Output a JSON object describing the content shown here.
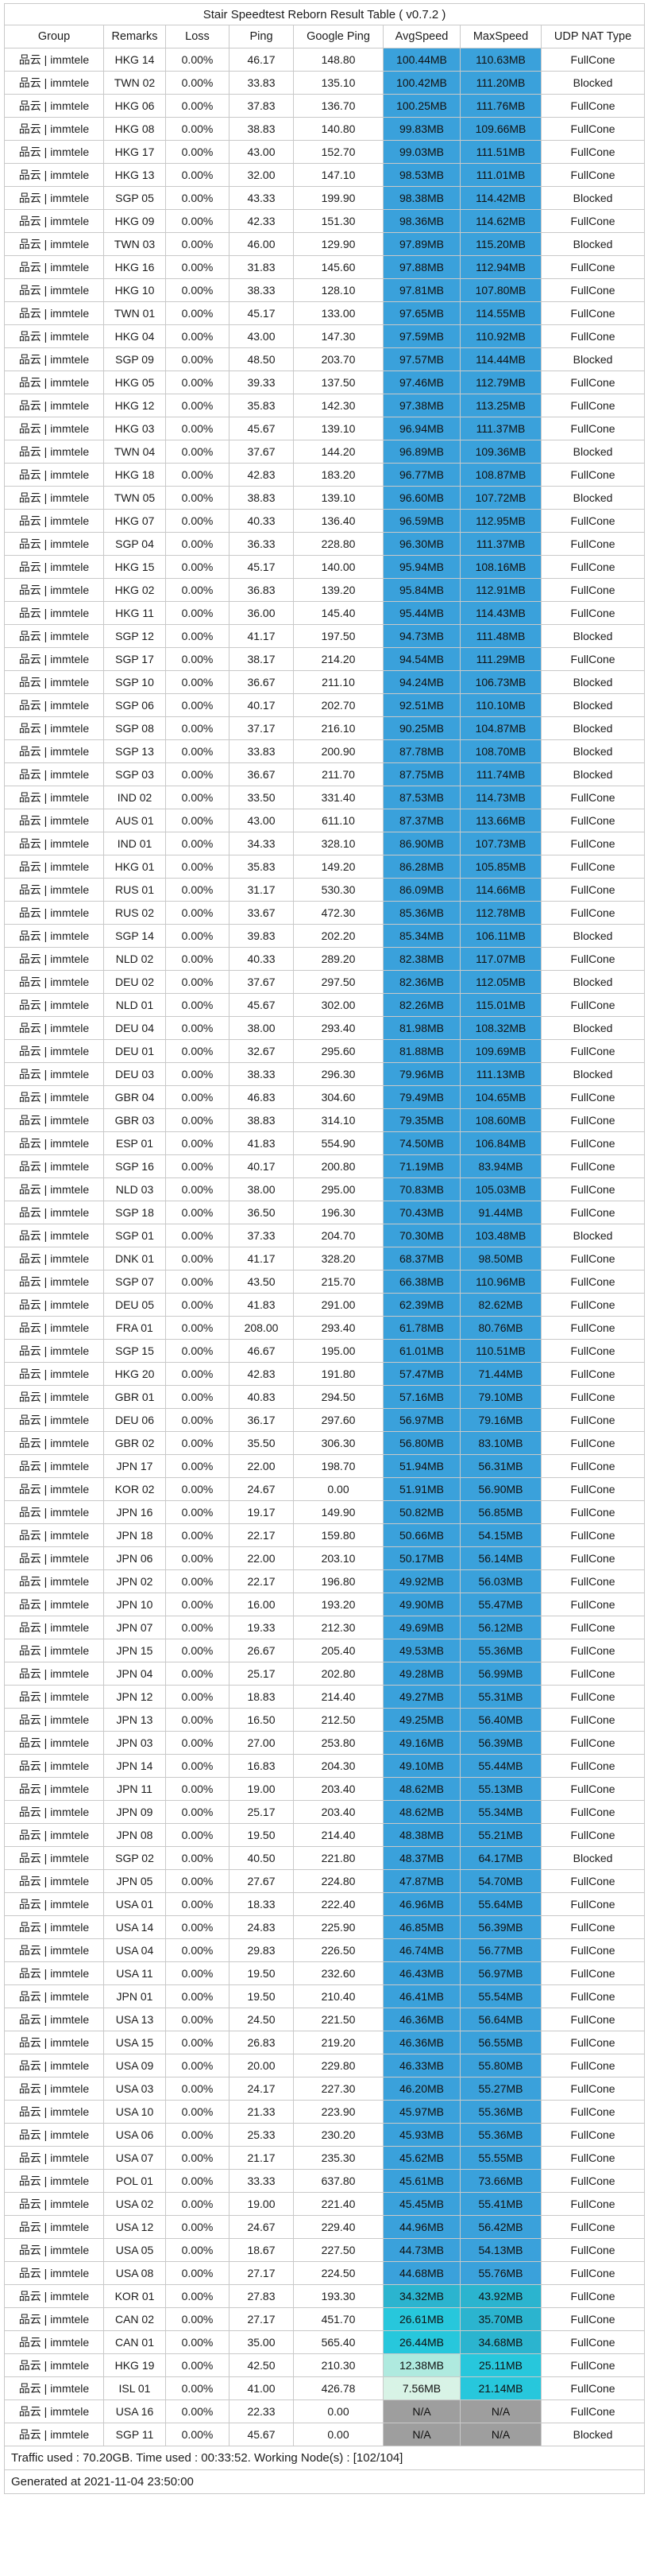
{
  "title": "Stair Speedtest Reborn Result Table ( v0.7.2 )",
  "group_label": "品云 | immtele",
  "columns": [
    "Group",
    "Remarks",
    "Loss",
    "Ping",
    "Google Ping",
    "AvgSpeed",
    "MaxSpeed",
    "UDP NAT Type"
  ],
  "colors": {
    "speed_high_blue": "#3AA1DB",
    "speed_teal": "#2BB4CF",
    "speed_cyan": "#27C7DC",
    "speed_pale_aqua": "#AFEADF",
    "speed_pale_mint": "#D8F3E6",
    "na_gray": "#9E9E9E",
    "grid": "#C9C9C9",
    "scale": [
      {
        "min": 44,
        "color": "#3AA1DB"
      },
      {
        "min": 30,
        "color": "#2BB4CF"
      },
      {
        "min": 20,
        "color": "#27C7DC"
      },
      {
        "min": 10,
        "color": "#AFEADF"
      },
      {
        "min": 0,
        "color": "#D8F3E6"
      }
    ]
  },
  "rows": [
    [
      "HKG 14",
      "0.00%",
      "46.17",
      "148.80",
      "100.44MB",
      "110.63MB",
      "FullCone"
    ],
    [
      "TWN 02",
      "0.00%",
      "33.83",
      "135.10",
      "100.42MB",
      "111.20MB",
      "Blocked"
    ],
    [
      "HKG 06",
      "0.00%",
      "37.83",
      "136.70",
      "100.25MB",
      "111.76MB",
      "FullCone"
    ],
    [
      "HKG 08",
      "0.00%",
      "38.83",
      "140.80",
      "99.83MB",
      "109.66MB",
      "FullCone"
    ],
    [
      "HKG 17",
      "0.00%",
      "43.00",
      "152.70",
      "99.03MB",
      "111.51MB",
      "FullCone"
    ],
    [
      "HKG 13",
      "0.00%",
      "32.00",
      "147.10",
      "98.53MB",
      "111.01MB",
      "FullCone"
    ],
    [
      "SGP 05",
      "0.00%",
      "43.33",
      "199.90",
      "98.38MB",
      "114.42MB",
      "Blocked"
    ],
    [
      "HKG 09",
      "0.00%",
      "42.33",
      "151.30",
      "98.36MB",
      "114.62MB",
      "FullCone"
    ],
    [
      "TWN 03",
      "0.00%",
      "46.00",
      "129.90",
      "97.89MB",
      "115.20MB",
      "Blocked"
    ],
    [
      "HKG 16",
      "0.00%",
      "31.83",
      "145.60",
      "97.88MB",
      "112.94MB",
      "FullCone"
    ],
    [
      "HKG 10",
      "0.00%",
      "38.33",
      "128.10",
      "97.81MB",
      "107.80MB",
      "FullCone"
    ],
    [
      "TWN 01",
      "0.00%",
      "45.17",
      "133.00",
      "97.65MB",
      "114.55MB",
      "FullCone"
    ],
    [
      "HKG 04",
      "0.00%",
      "43.00",
      "147.30",
      "97.59MB",
      "110.92MB",
      "FullCone"
    ],
    [
      "SGP 09",
      "0.00%",
      "48.50",
      "203.70",
      "97.57MB",
      "114.44MB",
      "Blocked"
    ],
    [
      "HKG 05",
      "0.00%",
      "39.33",
      "137.50",
      "97.46MB",
      "112.79MB",
      "FullCone"
    ],
    [
      "HKG 12",
      "0.00%",
      "35.83",
      "142.30",
      "97.38MB",
      "113.25MB",
      "FullCone"
    ],
    [
      "HKG 03",
      "0.00%",
      "45.67",
      "139.10",
      "96.94MB",
      "111.37MB",
      "FullCone"
    ],
    [
      "TWN 04",
      "0.00%",
      "37.67",
      "144.20",
      "96.89MB",
      "109.36MB",
      "Blocked"
    ],
    [
      "HKG 18",
      "0.00%",
      "42.83",
      "183.20",
      "96.77MB",
      "108.87MB",
      "FullCone"
    ],
    [
      "TWN 05",
      "0.00%",
      "38.83",
      "139.10",
      "96.60MB",
      "107.72MB",
      "Blocked"
    ],
    [
      "HKG 07",
      "0.00%",
      "40.33",
      "136.40",
      "96.59MB",
      "112.95MB",
      "FullCone"
    ],
    [
      "SGP 04",
      "0.00%",
      "36.33",
      "228.80",
      "96.30MB",
      "111.37MB",
      "FullCone"
    ],
    [
      "HKG 15",
      "0.00%",
      "45.17",
      "140.00",
      "95.94MB",
      "108.16MB",
      "FullCone"
    ],
    [
      "HKG 02",
      "0.00%",
      "36.83",
      "139.20",
      "95.84MB",
      "112.91MB",
      "FullCone"
    ],
    [
      "HKG 11",
      "0.00%",
      "36.00",
      "145.40",
      "95.44MB",
      "114.43MB",
      "FullCone"
    ],
    [
      "SGP 12",
      "0.00%",
      "41.17",
      "197.50",
      "94.73MB",
      "111.48MB",
      "Blocked"
    ],
    [
      "SGP 17",
      "0.00%",
      "38.17",
      "214.20",
      "94.54MB",
      "111.29MB",
      "FullCone"
    ],
    [
      "SGP 10",
      "0.00%",
      "36.67",
      "211.10",
      "94.24MB",
      "106.73MB",
      "Blocked"
    ],
    [
      "SGP 06",
      "0.00%",
      "40.17",
      "202.70",
      "92.51MB",
      "110.10MB",
      "Blocked"
    ],
    [
      "SGP 08",
      "0.00%",
      "37.17",
      "216.10",
      "90.25MB",
      "104.87MB",
      "Blocked"
    ],
    [
      "SGP 13",
      "0.00%",
      "33.83",
      "200.90",
      "87.78MB",
      "108.70MB",
      "Blocked"
    ],
    [
      "SGP 03",
      "0.00%",
      "36.67",
      "211.70",
      "87.75MB",
      "111.74MB",
      "Blocked"
    ],
    [
      "IND 02",
      "0.00%",
      "33.50",
      "331.40",
      "87.53MB",
      "114.73MB",
      "FullCone"
    ],
    [
      "AUS 01",
      "0.00%",
      "43.00",
      "611.10",
      "87.37MB",
      "113.66MB",
      "FullCone"
    ],
    [
      "IND 01",
      "0.00%",
      "34.33",
      "328.10",
      "86.90MB",
      "107.73MB",
      "FullCone"
    ],
    [
      "HKG 01",
      "0.00%",
      "35.83",
      "149.20",
      "86.28MB",
      "105.85MB",
      "FullCone"
    ],
    [
      "RUS 01",
      "0.00%",
      "31.17",
      "530.30",
      "86.09MB",
      "114.66MB",
      "FullCone"
    ],
    [
      "RUS 02",
      "0.00%",
      "33.67",
      "472.30",
      "85.36MB",
      "112.78MB",
      "FullCone"
    ],
    [
      "SGP 14",
      "0.00%",
      "39.83",
      "202.20",
      "85.34MB",
      "106.11MB",
      "Blocked"
    ],
    [
      "NLD 02",
      "0.00%",
      "40.33",
      "289.20",
      "82.38MB",
      "117.07MB",
      "FullCone"
    ],
    [
      "DEU 02",
      "0.00%",
      "37.67",
      "297.50",
      "82.36MB",
      "112.05MB",
      "Blocked"
    ],
    [
      "NLD 01",
      "0.00%",
      "45.67",
      "302.00",
      "82.26MB",
      "115.01MB",
      "FullCone"
    ],
    [
      "DEU 04",
      "0.00%",
      "38.00",
      "293.40",
      "81.98MB",
      "108.32MB",
      "Blocked"
    ],
    [
      "DEU 01",
      "0.00%",
      "32.67",
      "295.60",
      "81.88MB",
      "109.69MB",
      "FullCone"
    ],
    [
      "DEU 03",
      "0.00%",
      "38.33",
      "296.30",
      "79.96MB",
      "111.13MB",
      "Blocked"
    ],
    [
      "GBR 04",
      "0.00%",
      "46.83",
      "304.60",
      "79.49MB",
      "104.65MB",
      "FullCone"
    ],
    [
      "GBR 03",
      "0.00%",
      "38.83",
      "314.10",
      "79.35MB",
      "108.60MB",
      "FullCone"
    ],
    [
      "ESP 01",
      "0.00%",
      "41.83",
      "554.90",
      "74.50MB",
      "106.84MB",
      "FullCone"
    ],
    [
      "SGP 16",
      "0.00%",
      "40.17",
      "200.80",
      "71.19MB",
      "83.94MB",
      "FullCone"
    ],
    [
      "NLD 03",
      "0.00%",
      "38.00",
      "295.00",
      "70.83MB",
      "105.03MB",
      "FullCone"
    ],
    [
      "SGP 18",
      "0.00%",
      "36.50",
      "196.30",
      "70.43MB",
      "91.44MB",
      "FullCone"
    ],
    [
      "SGP 01",
      "0.00%",
      "37.33",
      "204.70",
      "70.30MB",
      "103.48MB",
      "Blocked"
    ],
    [
      "DNK 01",
      "0.00%",
      "41.17",
      "328.20",
      "68.37MB",
      "98.50MB",
      "FullCone"
    ],
    [
      "SGP 07",
      "0.00%",
      "43.50",
      "215.70",
      "66.38MB",
      "110.96MB",
      "FullCone"
    ],
    [
      "DEU 05",
      "0.00%",
      "41.83",
      "291.00",
      "62.39MB",
      "82.62MB",
      "FullCone"
    ],
    [
      "FRA 01",
      "0.00%",
      "208.00",
      "293.40",
      "61.78MB",
      "80.76MB",
      "FullCone"
    ],
    [
      "SGP 15",
      "0.00%",
      "46.67",
      "195.00",
      "61.01MB",
      "110.51MB",
      "FullCone"
    ],
    [
      "HKG 20",
      "0.00%",
      "42.83",
      "191.80",
      "57.47MB",
      "71.44MB",
      "FullCone"
    ],
    [
      "GBR 01",
      "0.00%",
      "40.83",
      "294.50",
      "57.16MB",
      "79.10MB",
      "FullCone"
    ],
    [
      "DEU 06",
      "0.00%",
      "36.17",
      "297.60",
      "56.97MB",
      "79.16MB",
      "FullCone"
    ],
    [
      "GBR 02",
      "0.00%",
      "35.50",
      "306.30",
      "56.80MB",
      "83.10MB",
      "FullCone"
    ],
    [
      "JPN 17",
      "0.00%",
      "22.00",
      "198.70",
      "51.94MB",
      "56.31MB",
      "FullCone"
    ],
    [
      "KOR 02",
      "0.00%",
      "24.67",
      "0.00",
      "51.91MB",
      "56.90MB",
      "FullCone"
    ],
    [
      "JPN 16",
      "0.00%",
      "19.17",
      "149.90",
      "50.82MB",
      "56.85MB",
      "FullCone"
    ],
    [
      "JPN 18",
      "0.00%",
      "22.17",
      "159.80",
      "50.66MB",
      "54.15MB",
      "FullCone"
    ],
    [
      "JPN 06",
      "0.00%",
      "22.00",
      "203.10",
      "50.17MB",
      "56.14MB",
      "FullCone"
    ],
    [
      "JPN 02",
      "0.00%",
      "22.17",
      "196.80",
      "49.92MB",
      "56.03MB",
      "FullCone"
    ],
    [
      "JPN 10",
      "0.00%",
      "16.00",
      "193.20",
      "49.90MB",
      "55.47MB",
      "FullCone"
    ],
    [
      "JPN 07",
      "0.00%",
      "19.33",
      "212.30",
      "49.69MB",
      "56.12MB",
      "FullCone"
    ],
    [
      "JPN 15",
      "0.00%",
      "26.67",
      "205.40",
      "49.53MB",
      "55.36MB",
      "FullCone"
    ],
    [
      "JPN 04",
      "0.00%",
      "25.17",
      "202.80",
      "49.28MB",
      "56.99MB",
      "FullCone"
    ],
    [
      "JPN 12",
      "0.00%",
      "18.83",
      "214.40",
      "49.27MB",
      "55.31MB",
      "FullCone"
    ],
    [
      "JPN 13",
      "0.00%",
      "16.50",
      "212.50",
      "49.25MB",
      "56.40MB",
      "FullCone"
    ],
    [
      "JPN 03",
      "0.00%",
      "27.00",
      "253.80",
      "49.16MB",
      "56.39MB",
      "FullCone"
    ],
    [
      "JPN 14",
      "0.00%",
      "16.83",
      "204.30",
      "49.10MB",
      "55.44MB",
      "FullCone"
    ],
    [
      "JPN 11",
      "0.00%",
      "19.00",
      "203.40",
      "48.62MB",
      "55.13MB",
      "FullCone"
    ],
    [
      "JPN 09",
      "0.00%",
      "25.17",
      "203.40",
      "48.62MB",
      "55.34MB",
      "FullCone"
    ],
    [
      "JPN 08",
      "0.00%",
      "19.50",
      "214.40",
      "48.38MB",
      "55.21MB",
      "FullCone"
    ],
    [
      "SGP 02",
      "0.00%",
      "40.50",
      "221.80",
      "48.37MB",
      "64.17MB",
      "Blocked"
    ],
    [
      "JPN 05",
      "0.00%",
      "27.67",
      "224.80",
      "47.87MB",
      "54.70MB",
      "FullCone"
    ],
    [
      "USA 01",
      "0.00%",
      "18.33",
      "222.40",
      "46.96MB",
      "55.64MB",
      "FullCone"
    ],
    [
      "USA 14",
      "0.00%",
      "24.83",
      "225.90",
      "46.85MB",
      "56.39MB",
      "FullCone"
    ],
    [
      "USA 04",
      "0.00%",
      "29.83",
      "226.50",
      "46.74MB",
      "56.77MB",
      "FullCone"
    ],
    [
      "USA 11",
      "0.00%",
      "19.50",
      "232.60",
      "46.43MB",
      "56.97MB",
      "FullCone"
    ],
    [
      "JPN 01",
      "0.00%",
      "19.50",
      "210.40",
      "46.41MB",
      "55.54MB",
      "FullCone"
    ],
    [
      "USA 13",
      "0.00%",
      "24.50",
      "221.50",
      "46.36MB",
      "56.64MB",
      "FullCone"
    ],
    [
      "USA 15",
      "0.00%",
      "26.83",
      "219.20",
      "46.36MB",
      "56.55MB",
      "FullCone"
    ],
    [
      "USA 09",
      "0.00%",
      "20.00",
      "229.80",
      "46.33MB",
      "55.80MB",
      "FullCone"
    ],
    [
      "USA 03",
      "0.00%",
      "24.17",
      "227.30",
      "46.20MB",
      "55.27MB",
      "FullCone"
    ],
    [
      "USA 10",
      "0.00%",
      "21.33",
      "223.90",
      "45.97MB",
      "55.36MB",
      "FullCone"
    ],
    [
      "USA 06",
      "0.00%",
      "25.33",
      "230.20",
      "45.93MB",
      "55.36MB",
      "FullCone"
    ],
    [
      "USA 07",
      "0.00%",
      "21.17",
      "235.30",
      "45.62MB",
      "55.55MB",
      "FullCone"
    ],
    [
      "POL 01",
      "0.00%",
      "33.33",
      "637.80",
      "45.61MB",
      "73.66MB",
      "FullCone"
    ],
    [
      "USA 02",
      "0.00%",
      "19.00",
      "221.40",
      "45.45MB",
      "55.41MB",
      "FullCone"
    ],
    [
      "USA 12",
      "0.00%",
      "24.67",
      "229.40",
      "44.96MB",
      "56.42MB",
      "FullCone"
    ],
    [
      "USA 05",
      "0.00%",
      "18.67",
      "227.50",
      "44.73MB",
      "54.13MB",
      "FullCone"
    ],
    [
      "USA 08",
      "0.00%",
      "27.17",
      "224.50",
      "44.68MB",
      "55.76MB",
      "FullCone"
    ],
    [
      "KOR 01",
      "0.00%",
      "27.83",
      "193.30",
      "34.32MB",
      "43.92MB",
      "FullCone"
    ],
    [
      "CAN 02",
      "0.00%",
      "27.17",
      "451.70",
      "26.61MB",
      "35.70MB",
      "FullCone"
    ],
    [
      "CAN 01",
      "0.00%",
      "35.00",
      "565.40",
      "26.44MB",
      "34.68MB",
      "FullCone"
    ],
    [
      "HKG 19",
      "0.00%",
      "42.50",
      "210.30",
      "12.38MB",
      "25.11MB",
      "FullCone"
    ],
    [
      "ISL 01",
      "0.00%",
      "41.00",
      "426.78",
      "7.56MB",
      "21.14MB",
      "FullCone"
    ],
    [
      "USA 16",
      "0.00%",
      "22.33",
      "0.00",
      "N/A",
      "N/A",
      "FullCone"
    ],
    [
      "SGP 11",
      "0.00%",
      "45.67",
      "0.00",
      "N/A",
      "N/A",
      "Blocked"
    ]
  ],
  "footer": {
    "traffic": "Traffic used : 70.20GB. Time used : 00:33:52. Working Node(s) : [102/104]",
    "generated": "Generated at 2021-11-04 23:50:00"
  }
}
